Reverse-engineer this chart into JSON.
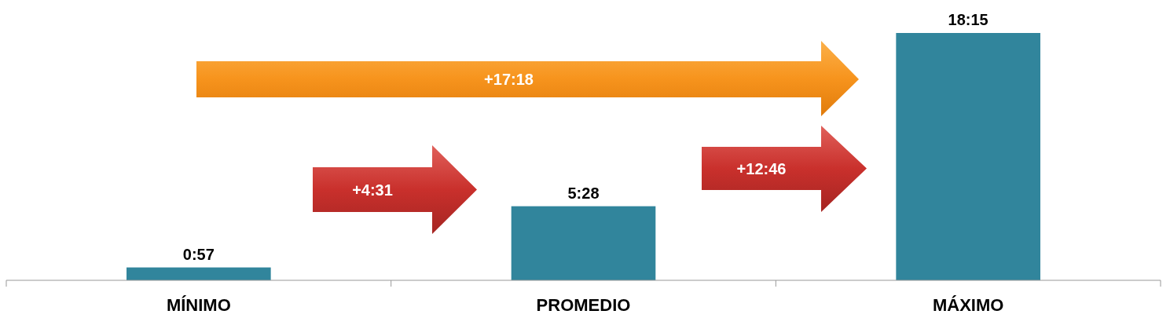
{
  "chart_data": {
    "type": "bar",
    "categories": [
      "MÍNIMO",
      "PROMEDIO",
      "MÁXIMO"
    ],
    "values": [
      0.95,
      5.4667,
      18.25
    ],
    "value_labels": [
      "0:57",
      "5:28",
      "18:15"
    ],
    "color": "#31859c",
    "annotations": [
      "+17:18",
      "+4:31",
      "+12:46"
    ]
  }
}
